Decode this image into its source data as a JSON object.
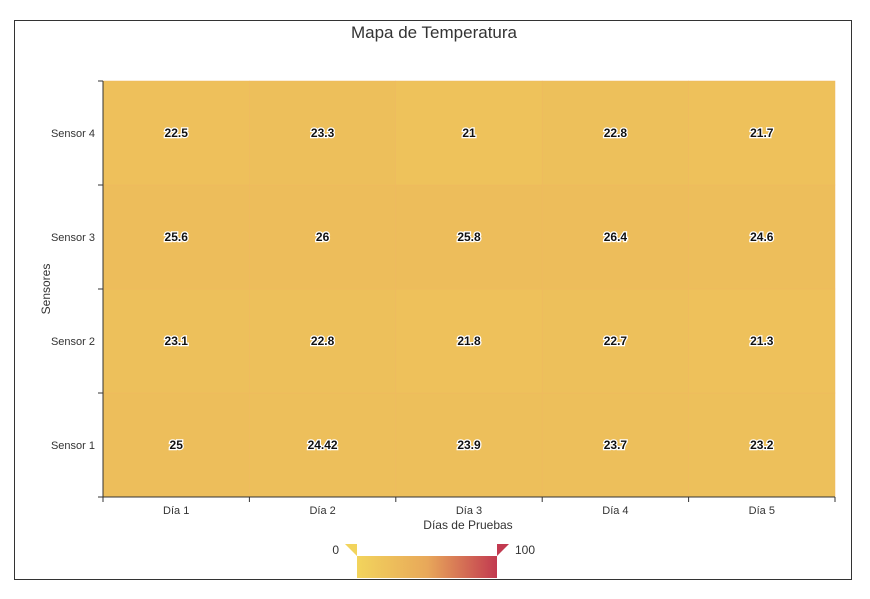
{
  "chart_data": {
    "type": "heatmap",
    "title": "Mapa de Temperatura",
    "xlabel": "Días de Pruebas",
    "ylabel": "Sensores",
    "x_categories": [
      "Día 1",
      "Día 2",
      "Día 3",
      "Día 4",
      "Día 5"
    ],
    "y_categories": [
      "Sensor 1",
      "Sensor 2",
      "Sensor 3",
      "Sensor 4"
    ],
    "values": [
      [
        25,
        24.42,
        23.9,
        23.7,
        23.2
      ],
      [
        23.1,
        22.8,
        21.8,
        22.7,
        21.3
      ],
      [
        25.6,
        26,
        25.8,
        26.4,
        24.6
      ],
      [
        22.5,
        23.3,
        21,
        22.8,
        21.7
      ]
    ],
    "value_labels": [
      [
        "25",
        "24.42",
        "23.9",
        "23.7",
        "23.2"
      ],
      [
        "23.1",
        "22.8",
        "21.8",
        "22.7",
        "21.3"
      ],
      [
        "25.6",
        "26",
        "25.8",
        "26.4",
        "24.6"
      ],
      [
        "22.5",
        "23.3",
        "21",
        "22.8",
        "21.7"
      ]
    ],
    "visual_map": {
      "min": 0,
      "max": 100,
      "min_label": "0",
      "max_label": "100",
      "colors": [
        "#f2d45c",
        "#e8a85a",
        "#c23a50"
      ]
    },
    "grid": false
  }
}
